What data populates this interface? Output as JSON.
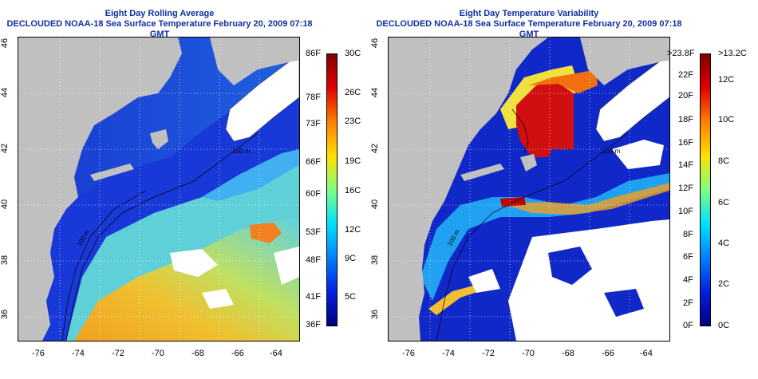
{
  "left_panel": {
    "title_line1": "Eight Day Rolling Average",
    "title_line2": "DECLOUDED NOAA-18 Sea Surface Temperature February 20, 2009 07:18 GMT",
    "lon_labels": [
      "-76",
      "-74",
      "-72",
      "-70",
      "-68",
      "-66",
      "-64"
    ],
    "lat_labels": [
      "46",
      "44",
      "42",
      "40",
      "38",
      "36"
    ],
    "colorbar_left_labels": [
      "86F",
      "78F",
      "73F",
      "66F",
      "60F",
      "53F",
      "48F",
      "41F",
      "36F"
    ],
    "colorbar_right_labels": [
      "30C",
      "26C",
      "23C",
      "19C",
      "16C",
      "12C",
      "9C",
      "5C"
    ],
    "contour_labels": [
      "200 m",
      "100 m",
      "200 m",
      "200 m"
    ]
  },
  "right_panel": {
    "title_line1": "Eight Day Temperature Variability",
    "title_line2": "DECLOUDED NOAA-18 Sea Surface Temperature February 20, 2009 07:18 GMT",
    "lon_labels": [
      "-76",
      "-74",
      "-72",
      "-70",
      "-68",
      "-66",
      "-64"
    ],
    "lat_labels": [
      "46",
      "44",
      "42",
      "40",
      "38",
      "36"
    ],
    "colorbar_left_labels": [
      ">23.8F",
      "22F",
      "20F",
      "18F",
      "16F",
      "14F",
      "12F",
      "10F",
      "8F",
      "6F",
      "4F",
      "2F",
      "0F"
    ],
    "colorbar_right_labels": [
      ">13.2C",
      "12C",
      "10C",
      "8C",
      "6C",
      "4C",
      "2C",
      "0C"
    ],
    "contour_labels": [
      "200 m",
      "100 m",
      "200 m"
    ]
  },
  "colors": {
    "ocean_cold": "#1030d0",
    "land": "#c0c0c0",
    "cloud": "#ffffff",
    "title": "#1030a0"
  }
}
